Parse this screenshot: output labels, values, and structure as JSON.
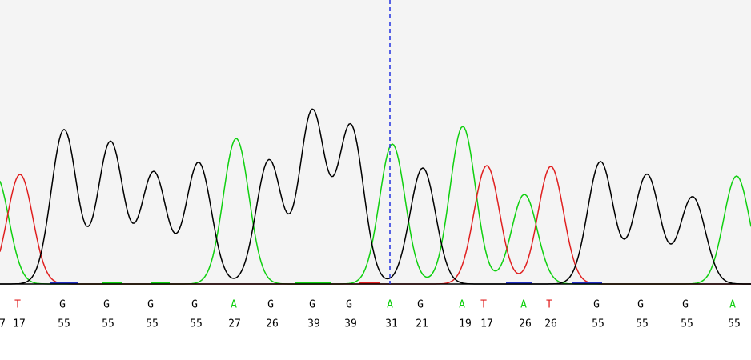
{
  "calls": [
    {
      "quality": "7"
    },
    {
      "base": "T",
      "quality": "17"
    },
    {
      "base": "G",
      "quality": "55"
    },
    {
      "base": "G",
      "quality": "55"
    },
    {
      "base": "G",
      "quality": "55"
    },
    {
      "base": "G",
      "quality": "55"
    },
    {
      "base": "A",
      "quality": "27"
    },
    {
      "base": "G",
      "quality": "26"
    },
    {
      "base": "G",
      "quality": "39"
    },
    {
      "base": "G",
      "quality": "39"
    },
    {
      "base": "A",
      "quality": "31"
    },
    {
      "base": "G",
      "quality": "21"
    },
    {
      "base": "A",
      "quality": "19"
    },
    {
      "base": "T",
      "quality": "17"
    },
    {
      "base": "A",
      "quality": "26"
    },
    {
      "base": "T",
      "quality": "26"
    },
    {
      "base": "G",
      "quality": "55"
    },
    {
      "base": "G",
      "quality": "55"
    },
    {
      "base": "G",
      "quality": "55"
    },
    {
      "base": "A",
      "quality": "55"
    }
  ]
}
